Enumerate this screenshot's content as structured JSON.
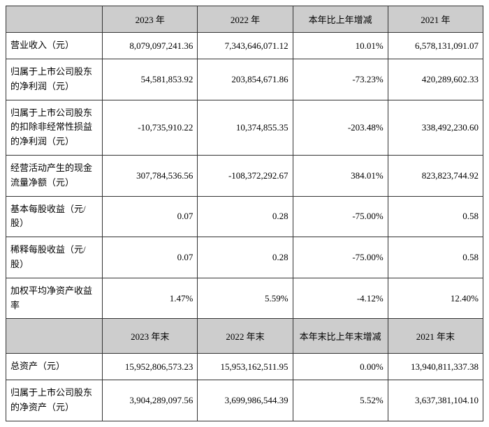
{
  "table": {
    "type": "table",
    "colors": {
      "border": "#333333",
      "shaded_bg": "#cdcdcd",
      "text": "#000000",
      "bg": "#ffffff"
    },
    "headers1": {
      "blank": "",
      "col1": "2023 年",
      "col2": "2022 年",
      "col3": "本年比上年增减",
      "col4": "2021 年"
    },
    "rows": [
      {
        "label": "营业收入（元）",
        "v1": "8,079,097,241.36",
        "v2": "7,343,646,071.12",
        "v3": "10.01%",
        "v4": "6,578,131,091.07"
      },
      {
        "label": "归属于上市公司股东的净利润（元）",
        "v1": "54,581,853.92",
        "v2": "203,854,671.86",
        "v3": "-73.23%",
        "v4": "420,289,602.33"
      },
      {
        "label": "归属于上市公司股东的扣除非经常性损益的净利润（元）",
        "v1": "-10,735,910.22",
        "v2": "10,374,855.35",
        "v3": "-203.48%",
        "v4": "338,492,230.60"
      },
      {
        "label": "经营活动产生的现金流量净额（元）",
        "v1": "307,784,536.56",
        "v2": "-108,372,292.67",
        "v3": "384.01%",
        "v4": "823,823,744.92"
      },
      {
        "label": "基本每股收益（元/股）",
        "v1": "0.07",
        "v2": "0.28",
        "v3": "-75.00%",
        "v4": "0.58"
      },
      {
        "label": "稀释每股收益（元/股）",
        "v1": "0.07",
        "v2": "0.28",
        "v3": "-75.00%",
        "v4": "0.58"
      },
      {
        "label": "加权平均净资产收益率",
        "v1": "1.47%",
        "v2": "5.59%",
        "v3": "-4.12%",
        "v4": "12.40%"
      }
    ],
    "headers2": {
      "blank": "",
      "col1": "2023 年末",
      "col2": "2022 年末",
      "col3": "本年末比上年末增减",
      "col4": "2021 年末"
    },
    "rows2": [
      {
        "label": "总资产（元）",
        "v1": "15,952,806,573.23",
        "v2": "15,953,162,511.95",
        "v3": "0.00%",
        "v4": "13,940,811,337.38"
      },
      {
        "label": "归属于上市公司股东的净资产（元）",
        "v1": "3,904,289,097.56",
        "v2": "3,699,986,544.39",
        "v3": "5.52%",
        "v4": "3,637,381,104.10"
      }
    ]
  }
}
